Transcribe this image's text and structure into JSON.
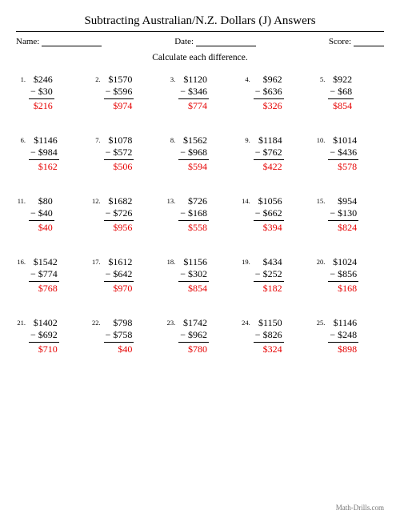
{
  "title": "Subtracting Australian/N.Z. Dollars (J) Answers",
  "meta": {
    "name_label": "Name:",
    "date_label": "Date:",
    "score_label": "Score:"
  },
  "instruction": "Calculate each difference.",
  "footer": "Math-Drills.com",
  "problems": [
    {
      "n": "1.",
      "a": "$246",
      "b": "− $30",
      "ans": "$216"
    },
    {
      "n": "2.",
      "a": "$1570",
      "b": "− $596",
      "ans": "$974"
    },
    {
      "n": "3.",
      "a": "$1120",
      "b": "− $346",
      "ans": "$774"
    },
    {
      "n": "4.",
      "a": "$962",
      "b": "− $636",
      "ans": "$326"
    },
    {
      "n": "5.",
      "a": "$922",
      "b": "− $68",
      "ans": "$854"
    },
    {
      "n": "6.",
      "a": "$1146",
      "b": "− $984",
      "ans": "$162"
    },
    {
      "n": "7.",
      "a": "$1078",
      "b": "− $572",
      "ans": "$506"
    },
    {
      "n": "8.",
      "a": "$1562",
      "b": "− $968",
      "ans": "$594"
    },
    {
      "n": "9.",
      "a": "$1184",
      "b": "− $762",
      "ans": "$422"
    },
    {
      "n": "10.",
      "a": "$1014",
      "b": "− $436",
      "ans": "$578"
    },
    {
      "n": "11.",
      "a": "$80",
      "b": "− $40",
      "ans": "$40"
    },
    {
      "n": "12.",
      "a": "$1682",
      "b": "− $726",
      "ans": "$956"
    },
    {
      "n": "13.",
      "a": "$726",
      "b": "− $168",
      "ans": "$558"
    },
    {
      "n": "14.",
      "a": "$1056",
      "b": "− $662",
      "ans": "$394"
    },
    {
      "n": "15.",
      "a": "$954",
      "b": "− $130",
      "ans": "$824"
    },
    {
      "n": "16.",
      "a": "$1542",
      "b": "− $774",
      "ans": "$768"
    },
    {
      "n": "17.",
      "a": "$1612",
      "b": "− $642",
      "ans": "$970"
    },
    {
      "n": "18.",
      "a": "$1156",
      "b": "− $302",
      "ans": "$854"
    },
    {
      "n": "19.",
      "a": "$434",
      "b": "− $252",
      "ans": "$182"
    },
    {
      "n": "20.",
      "a": "$1024",
      "b": "− $856",
      "ans": "$168"
    },
    {
      "n": "21.",
      "a": "$1402",
      "b": "− $692",
      "ans": "$710"
    },
    {
      "n": "22.",
      "a": "$798",
      "b": "− $758",
      "ans": "$40"
    },
    {
      "n": "23.",
      "a": "$1742",
      "b": "− $962",
      "ans": "$780"
    },
    {
      "n": "24.",
      "a": "$1150",
      "b": "− $826",
      "ans": "$324"
    },
    {
      "n": "25.",
      "a": "$1146",
      "b": "− $248",
      "ans": "$898"
    }
  ]
}
